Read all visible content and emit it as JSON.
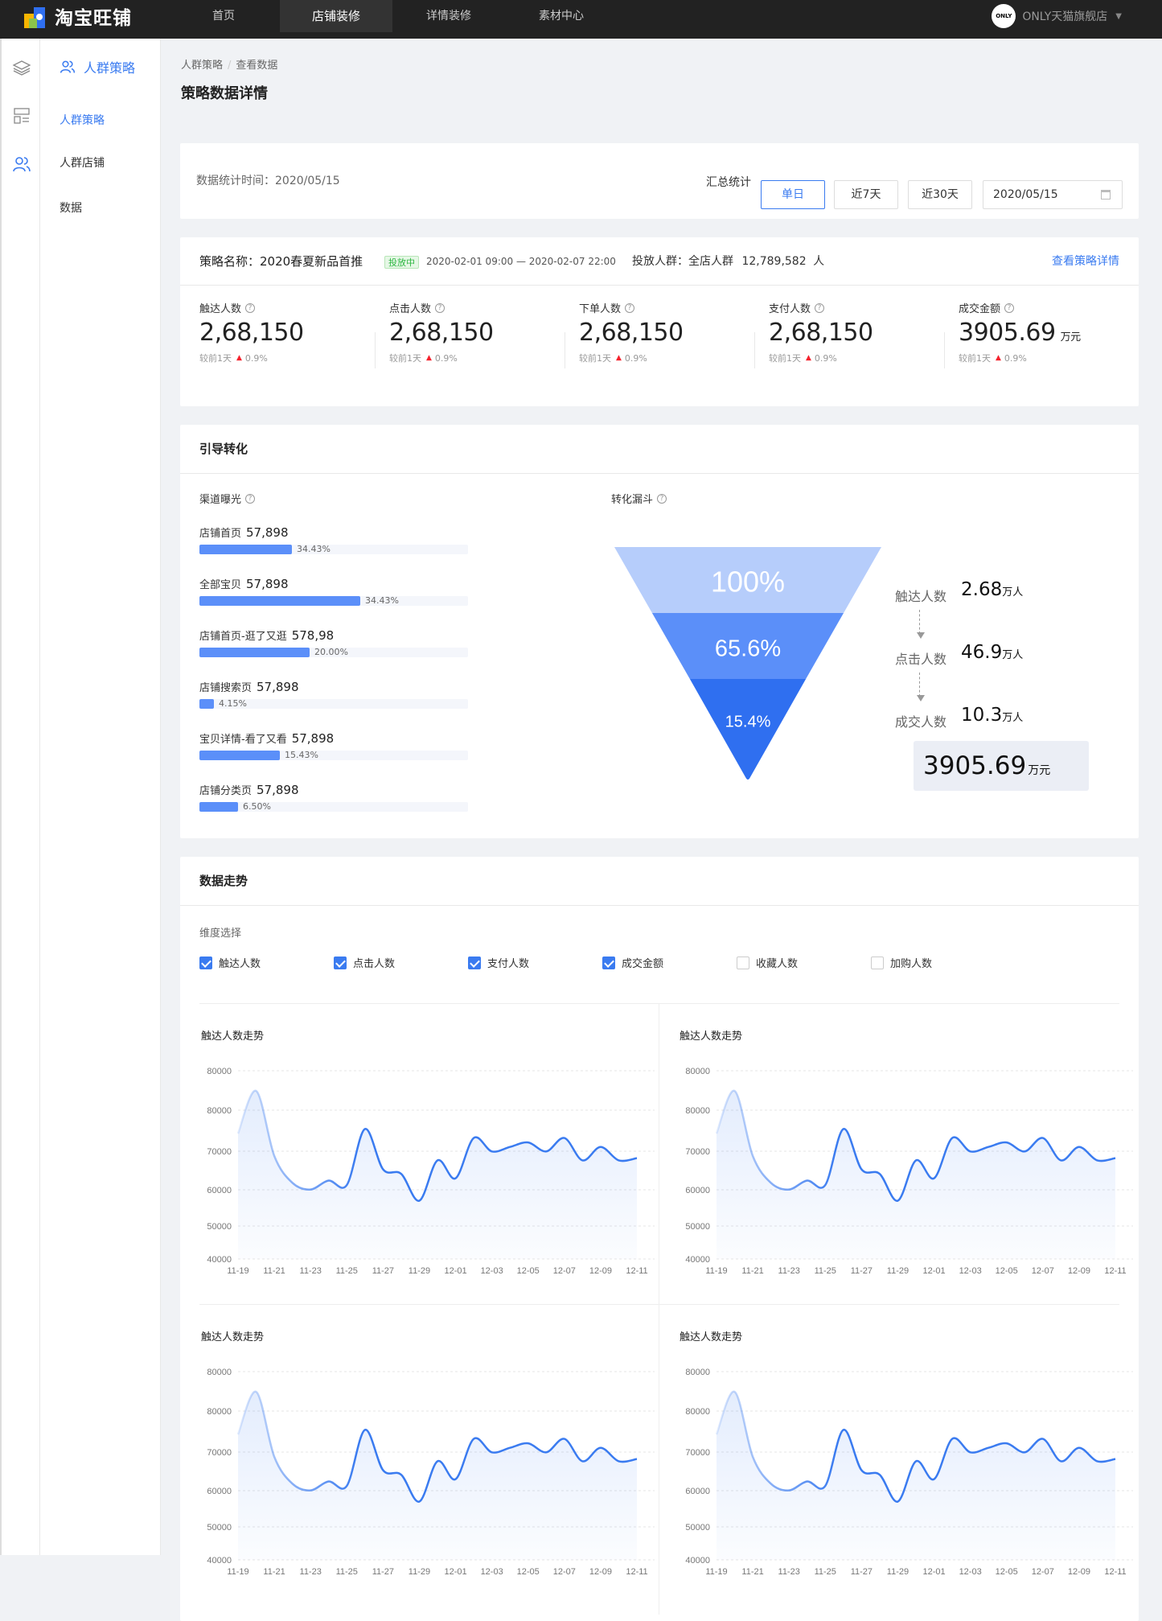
{
  "topbar": {
    "logo": "淘宝旺铺",
    "nav": [
      "首页",
      "店铺装修",
      "详情装修",
      "素材中心"
    ],
    "active_nav": 1,
    "shop_avatar": "ONLY",
    "shop_name": "ONLY天猫旗舰店"
  },
  "sidebar": {
    "title": "人群策略",
    "items": [
      "人群策略",
      "人群店铺",
      "数据"
    ],
    "active": 0
  },
  "breadcrumb": [
    "人群策略",
    "查看数据"
  ],
  "page_title": "策略数据详情",
  "filter": {
    "stat_time": "数据统计时间：2020/05/15",
    "summary_label": "汇总统计",
    "buttons": [
      "单日",
      "近7天",
      "近30天"
    ],
    "active": 0,
    "date": "2020/05/15"
  },
  "strategy": {
    "name": "策略名称：2020春夏新品首推",
    "status": "投放中",
    "range": "2020-02-01 09:00 — 2020-02-07 22:00",
    "crowd_label": "投放人群：全店人群",
    "crowd_value": "12,789,582",
    "crowd_unit": "人",
    "detail_link": "查看策略详情",
    "metrics": [
      {
        "label": "触达人数",
        "value": "2,68,150",
        "unit": "",
        "compare": "较前1天",
        "change": "0.9%"
      },
      {
        "label": "点击人数",
        "value": "2,68,150",
        "unit": "",
        "compare": "较前1天",
        "change": "0.9%"
      },
      {
        "label": "下单人数",
        "value": "2,68,150",
        "unit": "",
        "compare": "较前1天",
        "change": "0.9%"
      },
      {
        "label": "支付人数",
        "value": "2,68,150",
        "unit": "",
        "compare": "较前1天",
        "change": "0.9%"
      },
      {
        "label": "成交金额",
        "value": "3905.69",
        "unit": "万元",
        "compare": "较前1天",
        "change": "0.9%"
      }
    ]
  },
  "guide": {
    "title": "引导转化",
    "channel_title": "渠道曝光",
    "channels": [
      {
        "name": "店铺首页",
        "value": "57,898",
        "percent": "34.43%",
        "fraction": 0.3443
      },
      {
        "name": "全部宝贝",
        "value": "57,898",
        "percent": "34.43%",
        "fraction": 0.6
      },
      {
        "name": "店铺首页-逛了又逛",
        "value": "578,98",
        "percent": "20.00%",
        "fraction": 0.41
      },
      {
        "name": "店铺搜索页",
        "value": "57,898",
        "percent": "4.15%",
        "fraction": 0.055
      },
      {
        "name": "宝贝详情-看了又看",
        "value": "57,898",
        "percent": "15.43%",
        "fraction": 0.3
      },
      {
        "name": "店铺分类页",
        "value": "57,898",
        "percent": "6.50%",
        "fraction": 0.145
      }
    ],
    "funnel_title": "转化漏斗",
    "funnel_levels": [
      "100%",
      "65.6%",
      "15.4%"
    ],
    "funnel_colors": [
      "#b6cdfb",
      "#5b8ff9",
      "#2f6ff0"
    ],
    "funnel_stats": [
      {
        "label": "触达人数",
        "value": "2.68",
        "unit": "万人"
      },
      {
        "label": "点击人数",
        "value": "46.9",
        "unit": "万人"
      },
      {
        "label": "成交人数",
        "value": "10.3",
        "unit": "万人"
      }
    ],
    "funnel_amount": {
      "value": "3905.69",
      "unit": "万元"
    }
  },
  "trend": {
    "title": "数据走势",
    "dim_label": "维度选择",
    "dimensions": [
      {
        "label": "触达人数",
        "checked": true
      },
      {
        "label": "点击人数",
        "checked": true
      },
      {
        "label": "支付人数",
        "checked": true
      },
      {
        "label": "成交金额",
        "checked": true
      },
      {
        "label": "收藏人数",
        "checked": false
      },
      {
        "label": "加购人数",
        "checked": false
      }
    ]
  },
  "chart_data": [
    {
      "type": "line",
      "title": "触达人数走势",
      "y_tick_labels": [
        "80000",
        "80000",
        "70000",
        "60000",
        "50000",
        "40000"
      ],
      "x_tick_labels": [
        "11-19",
        "11-21",
        "11-23",
        "11-25",
        "11-27",
        "11-29",
        "12-01",
        "12-03",
        "12-05",
        "12-07",
        "12-09",
        "12-11"
      ],
      "ylim": [
        40000,
        82000
      ],
      "color": "#3a7bf0",
      "series": [
        {
          "x": [
            0,
            0.5,
            1,
            1.5,
            2,
            2.5,
            3,
            3.5,
            4,
            4.5,
            5,
            5.5,
            6,
            6.5,
            7,
            7.5,
            8,
            8.5,
            9,
            9.5,
            10,
            10.5,
            11
          ],
          "values": [
            68000,
            77500,
            63000,
            57000,
            55500,
            57500,
            56500,
            69000,
            60000,
            59000,
            53000,
            62000,
            58000,
            67000,
            64000,
            65000,
            66000,
            64000,
            67000,
            62000,
            65000,
            62000,
            62500
          ]
        }
      ]
    },
    {
      "type": "line",
      "title": "触达人数走势",
      "y_tick_labels": [
        "80000",
        "80000",
        "70000",
        "60000",
        "50000",
        "40000"
      ],
      "x_tick_labels": [
        "11-19",
        "11-21",
        "11-23",
        "11-25",
        "11-27",
        "11-29",
        "12-01",
        "12-03",
        "12-05",
        "12-07",
        "12-09",
        "12-11"
      ],
      "ylim": [
        40000,
        82000
      ],
      "color": "#3a7bf0",
      "series": [
        {
          "x": [
            0,
            0.5,
            1,
            1.5,
            2,
            2.5,
            3,
            3.5,
            4,
            4.5,
            5,
            5.5,
            6,
            6.5,
            7,
            7.5,
            8,
            8.5,
            9,
            9.5,
            10,
            10.5,
            11
          ],
          "values": [
            68000,
            77500,
            63000,
            57000,
            55500,
            57500,
            56500,
            69000,
            60000,
            59000,
            53000,
            62000,
            58000,
            67000,
            64000,
            65000,
            66000,
            64000,
            67000,
            62000,
            65000,
            62000,
            62500
          ]
        }
      ]
    },
    {
      "type": "line",
      "title": "触达人数走势",
      "y_tick_labels": [
        "80000",
        "80000",
        "70000",
        "60000",
        "50000",
        "40000"
      ],
      "x_tick_labels": [
        "11-19",
        "11-21",
        "11-23",
        "11-25",
        "11-27",
        "11-29",
        "12-01",
        "12-03",
        "12-05",
        "12-07",
        "12-09",
        "12-11"
      ],
      "ylim": [
        40000,
        82000
      ],
      "color": "#3a7bf0",
      "series": [
        {
          "x": [
            0,
            0.5,
            1,
            1.5,
            2,
            2.5,
            3,
            3.5,
            4,
            4.5,
            5,
            5.5,
            6,
            6.5,
            7,
            7.5,
            8,
            8.5,
            9,
            9.5,
            10,
            10.5,
            11
          ],
          "values": [
            68000,
            77500,
            63000,
            57000,
            55500,
            57500,
            56500,
            69000,
            60000,
            59000,
            53000,
            62000,
            58000,
            67000,
            64000,
            65000,
            66000,
            64000,
            67000,
            62000,
            65000,
            62000,
            62500
          ]
        }
      ]
    },
    {
      "type": "line",
      "title": "触达人数走势",
      "y_tick_labels": [
        "80000",
        "80000",
        "70000",
        "60000",
        "50000",
        "40000"
      ],
      "x_tick_labels": [
        "11-19",
        "11-21",
        "11-23",
        "11-25",
        "11-27",
        "11-29",
        "12-01",
        "12-03",
        "12-05",
        "12-07",
        "12-09",
        "12-11"
      ],
      "ylim": [
        40000,
        82000
      ],
      "color": "#3a7bf0",
      "series": [
        {
          "x": [
            0,
            0.5,
            1,
            1.5,
            2,
            2.5,
            3,
            3.5,
            4,
            4.5,
            5,
            5.5,
            6,
            6.5,
            7,
            7.5,
            8,
            8.5,
            9,
            9.5,
            10,
            10.5,
            11
          ],
          "values": [
            68000,
            77500,
            63000,
            57000,
            55500,
            57500,
            56500,
            69000,
            60000,
            59000,
            53000,
            62000,
            58000,
            67000,
            64000,
            65000,
            66000,
            64000,
            67000,
            62000,
            65000,
            62000,
            62500
          ]
        }
      ]
    }
  ]
}
